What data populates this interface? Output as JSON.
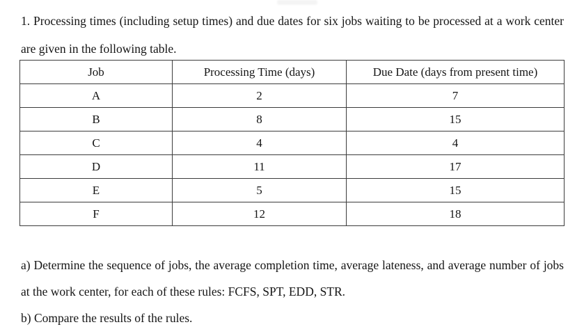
{
  "document": {
    "intro": "1. Processing times (including setup times) and due dates for six jobs waiting to be processed at a work center are given in the following table.",
    "table": {
      "headers": [
        "Job",
        "Processing Time (days)",
        "Due Date (days from present time)"
      ],
      "rows": [
        {
          "job": "A",
          "processing_time": "2",
          "due_date": "7"
        },
        {
          "job": "B",
          "processing_time": "8",
          "due_date": "15"
        },
        {
          "job": "C",
          "processing_time": "4",
          "due_date": "4"
        },
        {
          "job": "D",
          "processing_time": "11",
          "due_date": "17"
        },
        {
          "job": "E",
          "processing_time": "5",
          "due_date": "15"
        },
        {
          "job": "F",
          "processing_time": "12",
          "due_date": "18"
        }
      ]
    },
    "questions": {
      "a": "a) Determine the sequence of jobs, the average completion time, average lateness, and average number of jobs at the work center, for each of these rules: FCFS, SPT, EDD, STR.",
      "b": "b) Compare the results of the rules."
    }
  }
}
